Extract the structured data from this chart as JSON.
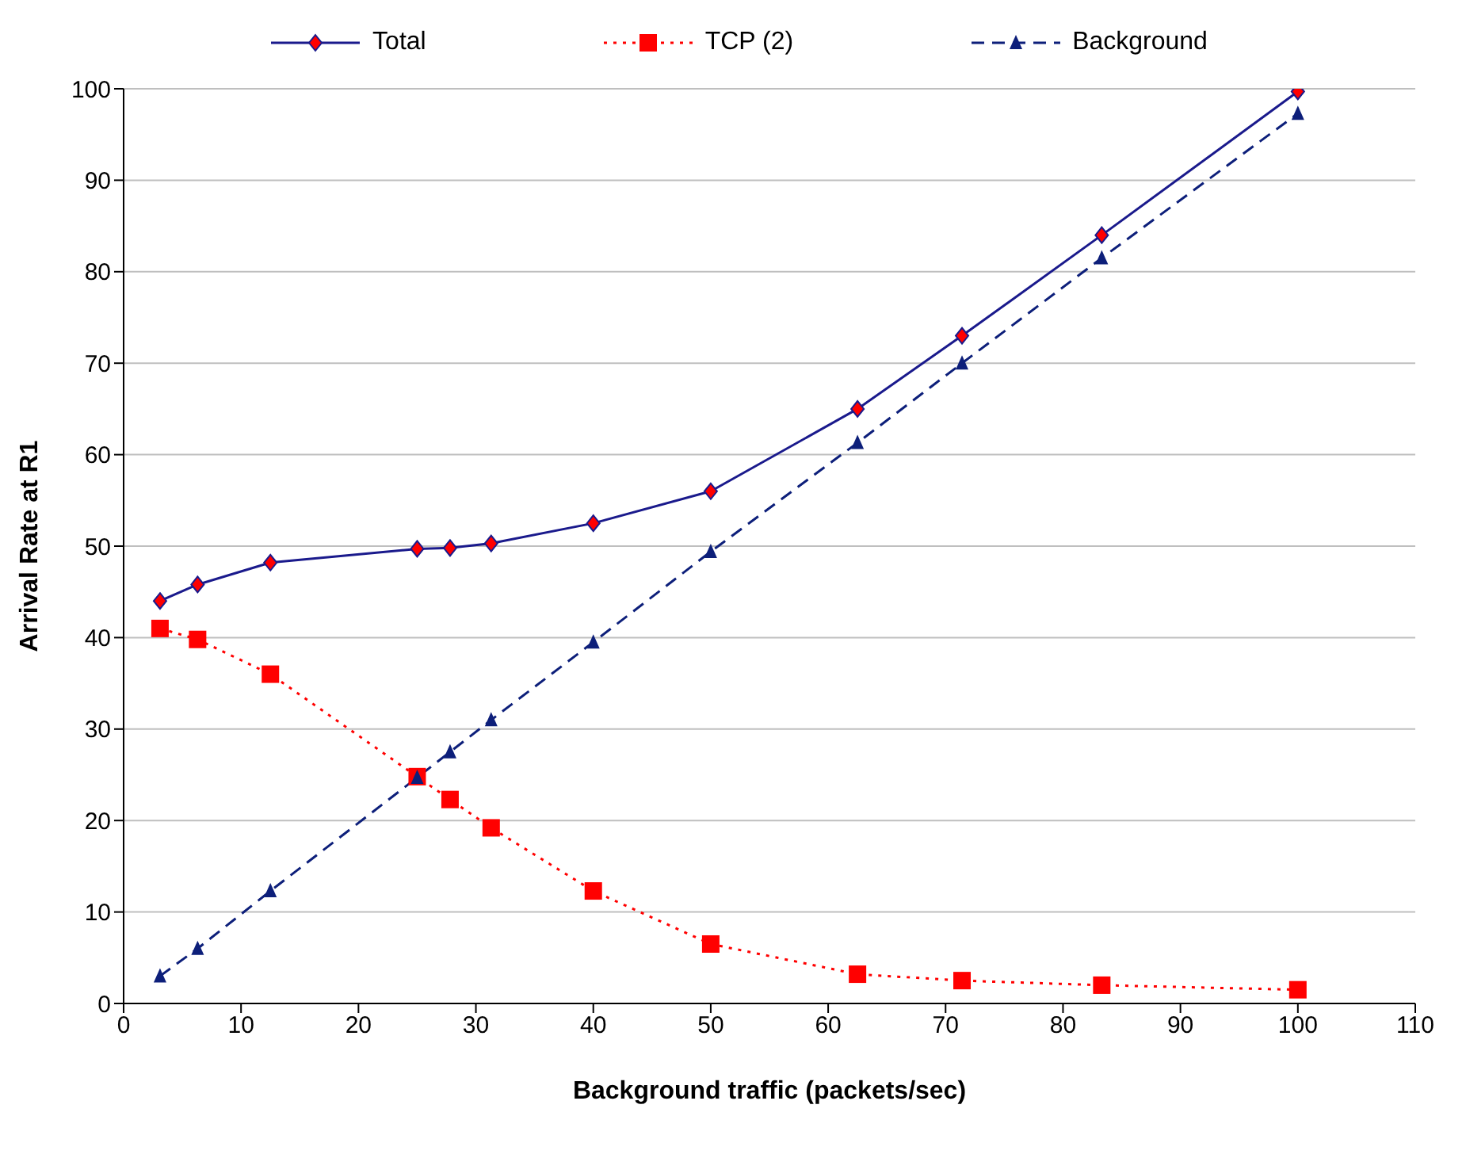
{
  "chart_data": {
    "type": "line",
    "xlabel": "Background traffic (packets/sec)",
    "ylabel": "Arrival Rate at R1",
    "x": [
      3.1,
      6.3,
      12.5,
      25,
      27.8,
      31.3,
      40,
      50,
      62.5,
      71.4,
      83.3,
      100
    ],
    "series": [
      {
        "name": "Total",
        "color": "#1a1a8c",
        "marker": "diamond",
        "line_style": "solid",
        "values": [
          44,
          45.8,
          48.2,
          49.7,
          49.8,
          50.3,
          52.5,
          56,
          65,
          73,
          84,
          99.7
        ]
      },
      {
        "name": "TCP (2)",
        "color": "#ff0000",
        "marker": "square",
        "line_style": "dotted",
        "values": [
          41,
          39.8,
          36,
          24.8,
          22.3,
          19.2,
          12.3,
          6.5,
          3.2,
          2.5,
          2,
          1.5
        ]
      },
      {
        "name": "Background",
        "color": "#0d1f7a",
        "marker": "triangle",
        "line_style": "dashed",
        "values": [
          3,
          6,
          12.3,
          24.7,
          27.5,
          31,
          39.5,
          49.4,
          61.3,
          70,
          81.5,
          97.3
        ]
      }
    ],
    "xlim": [
      0,
      110
    ],
    "xticks": [
      0,
      10,
      20,
      30,
      40,
      50,
      60,
      70,
      80,
      90,
      100,
      110
    ],
    "ylim": [
      0,
      100
    ],
    "yticks": [
      0,
      10,
      20,
      30,
      40,
      50,
      60,
      70,
      80,
      90,
      100
    ],
    "grid": "y",
    "legend": "top"
  }
}
